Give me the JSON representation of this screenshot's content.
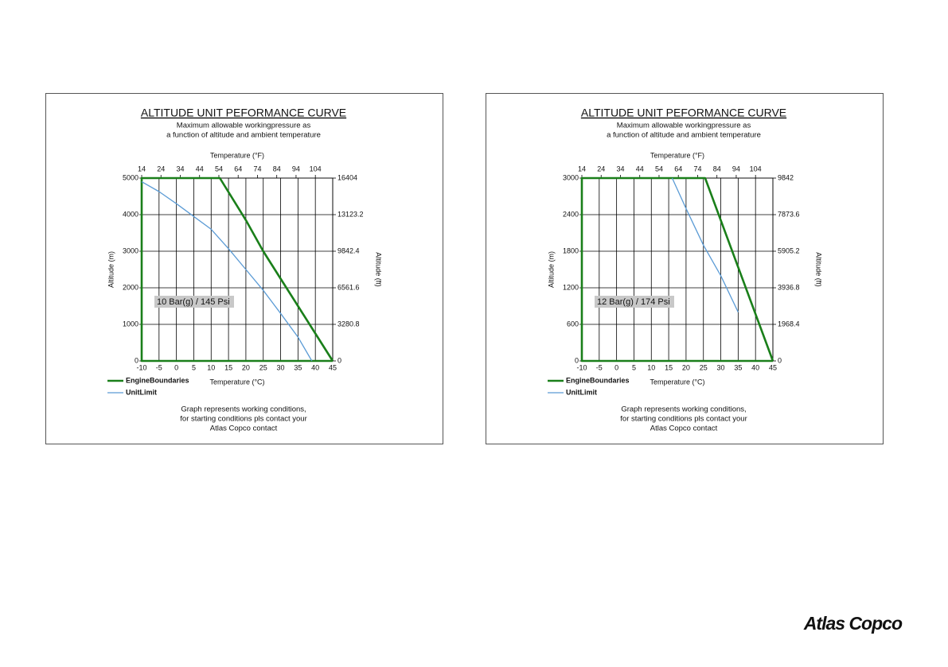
{
  "chart_data": [
    {
      "type": "line",
      "title": "ALTITUDE UNIT PEFORMANCE CURVE",
      "subtitle": [
        "Maximum allowable workingpressure as",
        "a function of altitude and ambient temperature"
      ],
      "xlabel": "Temperature (°C)",
      "x2label": "Temperature (°F)",
      "ylabel": "Altitude (m)",
      "y2label": "Altitude (ft)",
      "xlim": [
        -10,
        45
      ],
      "xticks": [
        -10,
        -5,
        0,
        5,
        10,
        15,
        20,
        25,
        30,
        35,
        40,
        45
      ],
      "x2lim": [
        14,
        113
      ],
      "x2ticks": [
        14,
        24,
        34,
        44,
        54,
        64,
        74,
        84,
        94,
        104
      ],
      "ylim": [
        0,
        5000
      ],
      "yticks": [
        0,
        1000,
        2000,
        3000,
        4000,
        5000
      ],
      "y2lim": [
        0,
        16404
      ],
      "y2ticks": [
        0,
        3280.8,
        6561.6,
        9842.4,
        13123.2,
        16404
      ],
      "grid": true,
      "legend": "bottom-left",
      "annotation": "10 Bar(g) / 145 Psi",
      "series": [
        {
          "name": "EngineBoundaries",
          "color": "#1a7f1a",
          "x": [
            45,
            -10,
            -10,
            12.5,
            20,
            25,
            30,
            35,
            40,
            45
          ],
          "values": [
            0,
            0,
            5000,
            5000,
            3850,
            3000,
            2250,
            1500,
            750,
            0
          ]
        },
        {
          "name": "UnitLimit",
          "color": "#5b9bd5",
          "x": [
            -10,
            -5,
            0,
            5,
            10,
            15,
            20,
            25,
            30,
            35,
            39
          ],
          "values": [
            4900,
            4630,
            4300,
            3950,
            3600,
            3070,
            2500,
            1930,
            1300,
            650,
            0
          ]
        }
      ],
      "footer": [
        "Graph represents working conditions,",
        "for starting conditions pls contact your",
        "Atlas Copco contact"
      ]
    },
    {
      "type": "line",
      "title": "ALTITUDE UNIT PEFORMANCE CURVE",
      "subtitle": [
        "Maximum allowable workingpressure as",
        "a function of altitude and ambient temperature"
      ],
      "xlabel": "Temperature (°C)",
      "x2label": "Temperature (°F)",
      "ylabel": "Altitude (m)",
      "y2label": "Altitude (ft)",
      "xlim": [
        -10,
        45
      ],
      "xticks": [
        -10,
        -5,
        0,
        5,
        10,
        15,
        20,
        25,
        30,
        35,
        40,
        45
      ],
      "x2lim": [
        14,
        113
      ],
      "x2ticks": [
        14,
        24,
        34,
        44,
        54,
        64,
        74,
        84,
        94,
        104
      ],
      "ylim": [
        0,
        3000
      ],
      "yticks": [
        0,
        600,
        1200,
        1800,
        2400,
        3000
      ],
      "y2lim": [
        0,
        9842
      ],
      "y2ticks": [
        0,
        1968.4,
        3936.8,
        5905.2,
        7873.6,
        9842
      ],
      "grid": true,
      "legend": "bottom-left",
      "annotation": "12 Bar(g) / 174 Psi",
      "series": [
        {
          "name": "EngineBoundaries",
          "color": "#1a7f1a",
          "x": [
            45,
            -10,
            -10,
            25.5,
            45
          ],
          "values": [
            0,
            0,
            3000,
            3000,
            0
          ]
        },
        {
          "name": "UnitLimit",
          "color": "#5b9bd5",
          "x": [
            16,
            20,
            25,
            30,
            35
          ],
          "values": [
            3000,
            2500,
            1900,
            1400,
            800
          ]
        }
      ],
      "footer": [
        "Graph represents working conditions,",
        "for starting conditions pls contact your",
        "Atlas Copco contact"
      ]
    }
  ],
  "logo": "Atlas Copco"
}
